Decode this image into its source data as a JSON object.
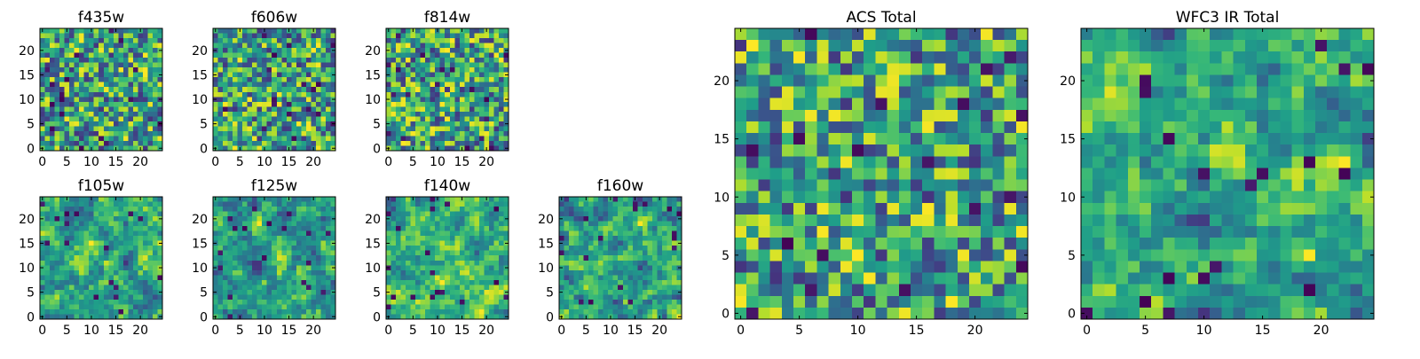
{
  "chart_data": [
    {
      "type": "heatmap",
      "title": "f435w",
      "xticks": [
        "0",
        "5",
        "10",
        "15",
        "20"
      ],
      "yticks": [
        "0",
        "5",
        "10",
        "15",
        "20"
      ],
      "xlim": [
        -0.5,
        24.5
      ],
      "ylim": [
        -0.5,
        24.5
      ],
      "grid": false,
      "colormap": "viridis",
      "n": 25,
      "seed": 11,
      "smooth": 0
    },
    {
      "type": "heatmap",
      "title": "f606w",
      "xticks": [
        "0",
        "5",
        "10",
        "15",
        "20"
      ],
      "yticks": [
        "0",
        "5",
        "10",
        "15",
        "20"
      ],
      "xlim": [
        -0.5,
        24.5
      ],
      "ylim": [
        -0.5,
        24.5
      ],
      "grid": false,
      "colormap": "viridis",
      "n": 25,
      "seed": 22,
      "smooth": 0
    },
    {
      "type": "heatmap",
      "title": "f814w",
      "xticks": [
        "0",
        "5",
        "10",
        "15",
        "20"
      ],
      "yticks": [
        "0",
        "5",
        "10",
        "15",
        "20"
      ],
      "xlim": [
        -0.5,
        24.5
      ],
      "ylim": [
        -0.5,
        24.5
      ],
      "grid": false,
      "colormap": "viridis",
      "n": 25,
      "seed": 33,
      "smooth": 0
    },
    {
      "type": "heatmap",
      "title": "f105w",
      "xticks": [
        "0",
        "5",
        "10",
        "15",
        "20"
      ],
      "yticks": [
        "0",
        "5",
        "10",
        "15",
        "20"
      ],
      "xlim": [
        -0.5,
        24.5
      ],
      "ylim": [
        -0.5,
        24.5
      ],
      "grid": false,
      "colormap": "viridis",
      "n": 25,
      "seed": 44,
      "smooth": 1
    },
    {
      "type": "heatmap",
      "title": "f125w",
      "xticks": [
        "0",
        "5",
        "10",
        "15",
        "20"
      ],
      "yticks": [
        "0",
        "5",
        "10",
        "15",
        "20"
      ],
      "xlim": [
        -0.5,
        24.5
      ],
      "ylim": [
        -0.5,
        24.5
      ],
      "grid": false,
      "colormap": "viridis",
      "n": 25,
      "seed": 55,
      "smooth": 1
    },
    {
      "type": "heatmap",
      "title": "f140w",
      "xticks": [
        "0",
        "5",
        "10",
        "15",
        "20"
      ],
      "yticks": [
        "0",
        "5",
        "10",
        "15",
        "20"
      ],
      "xlim": [
        -0.5,
        24.5
      ],
      "ylim": [
        -0.5,
        24.5
      ],
      "grid": false,
      "colormap": "viridis",
      "n": 25,
      "seed": 66,
      "smooth": 2
    },
    {
      "type": "heatmap",
      "title": "f160w",
      "xticks": [
        "0",
        "5",
        "10",
        "15",
        "20"
      ],
      "yticks": [
        "0",
        "5",
        "10",
        "15",
        "20"
      ],
      "xlim": [
        -0.5,
        24.5
      ],
      "ylim": [
        -0.5,
        24.5
      ],
      "grid": false,
      "colormap": "viridis",
      "n": 25,
      "seed": 77,
      "smooth": 1
    },
    {
      "type": "heatmap",
      "title": "ACS Total",
      "xticks": [
        "0",
        "5",
        "10",
        "15",
        "20"
      ],
      "yticks": [
        "0",
        "5",
        "10",
        "15",
        "20"
      ],
      "xlim": [
        -0.5,
        24.5
      ],
      "ylim": [
        -0.5,
        24.5
      ],
      "grid": false,
      "colormap": "viridis",
      "n": 25,
      "seed": 88,
      "smooth": 0
    },
    {
      "type": "heatmap",
      "title": "WFC3 IR Total",
      "xticks": [
        "0",
        "5",
        "10",
        "15",
        "20"
      ],
      "yticks": [
        "0",
        "5",
        "10",
        "15",
        "20"
      ],
      "xlim": [
        -0.5,
        24.5
      ],
      "ylim": [
        -0.5,
        24.5
      ],
      "grid": false,
      "colormap": "viridis",
      "n": 25,
      "seed": 99,
      "smooth": 1
    }
  ]
}
